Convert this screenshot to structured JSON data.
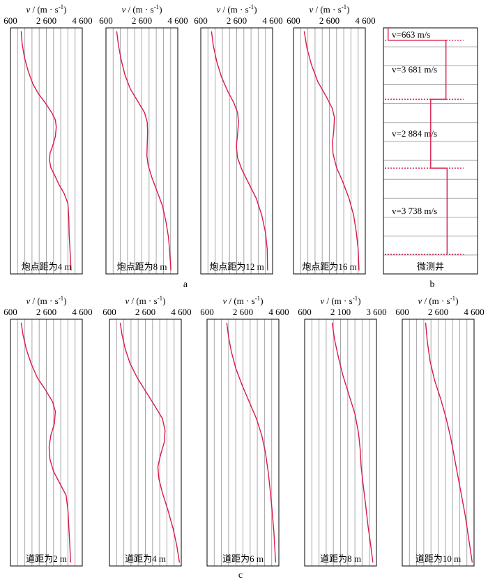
{
  "labels": {
    "a": "a",
    "b": "b",
    "c": "c"
  },
  "colors": {
    "curve": "#d81b4a",
    "grid": "#a6a6a6",
    "frame": "#000000"
  },
  "axis_label": {
    "v": "v",
    "unit": " / (m · s",
    "sup": "-1",
    "close": ")"
  },
  "chart_data": [
    {
      "type": "line",
      "title": "",
      "caption": "炮点距为4 m",
      "xlabel": "v / (m · s-1)",
      "xlim": [
        600,
        4600
      ],
      "ticks": [
        "600",
        "2 600",
        "4 600"
      ],
      "grid": true,
      "series": [
        {
          "values": [
            [
              1200,
              0
            ],
            [
              1250,
              0.05
            ],
            [
              1380,
              0.11
            ],
            [
              1600,
              0.17
            ],
            [
              1850,
              0.22
            ],
            [
              2150,
              0.26
            ],
            [
              2550,
              0.3
            ],
            [
              2900,
              0.34
            ],
            [
              3100,
              0.37
            ],
            [
              3150,
              0.4
            ],
            [
              3100,
              0.44
            ],
            [
              2950,
              0.48
            ],
            [
              2800,
              0.51
            ],
            [
              2780,
              0.54
            ],
            [
              2850,
              0.57
            ],
            [
              3050,
              0.6
            ],
            [
              3300,
              0.64
            ],
            [
              3600,
              0.68
            ],
            [
              3800,
              0.72
            ],
            [
              3850,
              0.78
            ],
            [
              3870,
              0.85
            ],
            [
              3920,
              0.92
            ],
            [
              3980,
              1.0
            ]
          ]
        }
      ]
    },
    {
      "type": "line",
      "title": "",
      "caption": "炮点距为8 m",
      "xlabel": "v / (m · s-1)",
      "xlim": [
        600,
        4600
      ],
      "ticks": [
        "600",
        "2 600",
        "4 600"
      ],
      "grid": true,
      "series": [
        {
          "values": [
            [
              1200,
              0
            ],
            [
              1300,
              0.06
            ],
            [
              1450,
              0.12
            ],
            [
              1650,
              0.18
            ],
            [
              1950,
              0.24
            ],
            [
              2350,
              0.29
            ],
            [
              2750,
              0.34
            ],
            [
              2900,
              0.38
            ],
            [
              2920,
              0.42
            ],
            [
              2900,
              0.47
            ],
            [
              2880,
              0.52
            ],
            [
              2950,
              0.56
            ],
            [
              3150,
              0.61
            ],
            [
              3450,
              0.67
            ],
            [
              3750,
              0.73
            ],
            [
              3950,
              0.8
            ],
            [
              4080,
              0.86
            ],
            [
              4150,
              0.92
            ],
            [
              4220,
              1.0
            ]
          ]
        }
      ]
    },
    {
      "type": "line",
      "title": "",
      "caption": "炮点距为12 m",
      "xlabel": "v / (m · s-1)",
      "xlim": [
        600,
        4600
      ],
      "ticks": [
        "600",
        "2 600",
        "4 600"
      ],
      "grid": true,
      "series": [
        {
          "values": [
            [
              1200,
              0
            ],
            [
              1300,
              0.06
            ],
            [
              1500,
              0.13
            ],
            [
              1750,
              0.19
            ],
            [
              2100,
              0.25
            ],
            [
              2450,
              0.3
            ],
            [
              2650,
              0.34
            ],
            [
              2700,
              0.38
            ],
            [
              2650,
              0.43
            ],
            [
              2580,
              0.48
            ],
            [
              2650,
              0.53
            ],
            [
              2900,
              0.58
            ],
            [
              3300,
              0.64
            ],
            [
              3700,
              0.7
            ],
            [
              4000,
              0.77
            ],
            [
              4200,
              0.84
            ],
            [
              4300,
              0.91
            ],
            [
              4320,
              1.0
            ]
          ]
        }
      ]
    },
    {
      "type": "line",
      "title": "",
      "caption": "炮点距为16 m",
      "xlabel": "v / (m · s-1)",
      "xlim": [
        600,
        4600
      ],
      "ticks": [
        "600",
        "2 600",
        "4 600"
      ],
      "grid": true,
      "series": [
        {
          "values": [
            [
              1200,
              0
            ],
            [
              1350,
              0.07
            ],
            [
              1600,
              0.14
            ],
            [
              1950,
              0.21
            ],
            [
              2400,
              0.27
            ],
            [
              2750,
              0.32
            ],
            [
              2880,
              0.36
            ],
            [
              2850,
              0.41
            ],
            [
              2780,
              0.46
            ],
            [
              2800,
              0.51
            ],
            [
              3000,
              0.57
            ],
            [
              3350,
              0.63
            ],
            [
              3700,
              0.7
            ],
            [
              3950,
              0.77
            ],
            [
              4100,
              0.84
            ],
            [
              4200,
              0.91
            ],
            [
              4250,
              1.0
            ]
          ]
        }
      ]
    },
    {
      "type": "line",
      "title": "",
      "caption": "微测井",
      "layers": [
        {
          "label": "v=663 m/s",
          "v": 663,
          "top": 0.0,
          "bottom": 0.05
        },
        {
          "label": "v=3 681 m/s",
          "v": 3681,
          "top": 0.05,
          "bottom": 0.29
        },
        {
          "label": "v=2 884 m/s",
          "v": 2884,
          "top": 0.29,
          "bottom": 0.57
        },
        {
          "label": "v=3 738 m/s",
          "v": 3738,
          "top": 0.57,
          "bottom": 0.92
        }
      ],
      "grid": true
    },
    {
      "type": "line",
      "title": "",
      "caption": "道距为2 m",
      "xlabel": "v / (m · s-1)",
      "xlim": [
        600,
        4600
      ],
      "ticks": [
        "600",
        "2 600",
        "4 600"
      ],
      "grid": true,
      "series": [
        {
          "values": [
            [
              1200,
              0
            ],
            [
              1300,
              0.05
            ],
            [
              1480,
              0.11
            ],
            [
              1750,
              0.17
            ],
            [
              2100,
              0.23
            ],
            [
              2550,
              0.28
            ],
            [
              2950,
              0.33
            ],
            [
              3100,
              0.37
            ],
            [
              3050,
              0.42
            ],
            [
              2850,
              0.47
            ],
            [
              2750,
              0.52
            ],
            [
              2800,
              0.57
            ],
            [
              3000,
              0.62
            ],
            [
              3350,
              0.67
            ],
            [
              3700,
              0.72
            ],
            [
              3800,
              0.78
            ],
            [
              3850,
              0.85
            ],
            [
              3900,
              0.92
            ],
            [
              3950,
              1.0
            ]
          ]
        }
      ]
    },
    {
      "type": "line",
      "title": "",
      "caption": "道距为4 m",
      "xlabel": "v / (m · s-1)",
      "xlim": [
        600,
        4600
      ],
      "ticks": [
        "600",
        "2 600",
        "4 600"
      ],
      "grid": true,
      "series": [
        {
          "values": [
            [
              1200,
              0
            ],
            [
              1300,
              0.05
            ],
            [
              1480,
              0.11
            ],
            [
              1750,
              0.17
            ],
            [
              2150,
              0.23
            ],
            [
              2650,
              0.29
            ],
            [
              3150,
              0.35
            ],
            [
              3550,
              0.4
            ],
            [
              3700,
              0.45
            ],
            [
              3650,
              0.5
            ],
            [
              3450,
              0.55
            ],
            [
              3300,
              0.6
            ],
            [
              3350,
              0.65
            ],
            [
              3550,
              0.71
            ],
            [
              3850,
              0.78
            ],
            [
              4150,
              0.86
            ],
            [
              4350,
              0.93
            ],
            [
              4500,
              1.0
            ]
          ]
        }
      ]
    },
    {
      "type": "line",
      "title": "",
      "caption": "道距为6 m",
      "xlabel": "v / (m · s-1)",
      "xlim": [
        600,
        4600
      ],
      "ticks": [
        "600",
        "2 600",
        "4 600"
      ],
      "grid": true,
      "series": [
        {
          "values": [
            [
              1700,
              0
            ],
            [
              1800,
              0.06
            ],
            [
              1950,
              0.12
            ],
            [
              2200,
              0.19
            ],
            [
              2550,
              0.26
            ],
            [
              2950,
              0.33
            ],
            [
              3350,
              0.4
            ],
            [
              3650,
              0.47
            ],
            [
              3850,
              0.54
            ],
            [
              4000,
              0.62
            ],
            [
              4120,
              0.7
            ],
            [
              4220,
              0.78
            ],
            [
              4320,
              0.87
            ],
            [
              4420,
              1.0
            ]
          ]
        }
      ]
    },
    {
      "type": "line",
      "title": "",
      "caption": "道距为8 m",
      "xlabel": "v / (m · s-1)",
      "xlim": [
        600,
        3600
      ],
      "ticks": [
        "600",
        "2 100",
        "3 600"
      ],
      "grid": true,
      "series": [
        {
          "values": [
            [
              1750,
              0
            ],
            [
              1850,
              0.07
            ],
            [
              2000,
              0.14
            ],
            [
              2200,
              0.22
            ],
            [
              2450,
              0.3
            ],
            [
              2700,
              0.38
            ],
            [
              2850,
              0.46
            ],
            [
              2920,
              0.53
            ],
            [
              2960,
              0.6
            ],
            [
              3050,
              0.68
            ],
            [
              3150,
              0.76
            ],
            [
              3250,
              0.85
            ],
            [
              3350,
              0.92
            ],
            [
              3450,
              1.0
            ]
          ]
        }
      ]
    },
    {
      "type": "line",
      "title": "",
      "caption": "道距为10 m",
      "xlabel": "v / (m · s-1)",
      "xlim": [
        600,
        4600
      ],
      "ticks": [
        "600",
        "2 600",
        "4 600"
      ],
      "grid": true,
      "series": [
        {
          "values": [
            [
              1900,
              0
            ],
            [
              2000,
              0.08
            ],
            [
              2150,
              0.16
            ],
            [
              2400,
              0.24
            ],
            [
              2750,
              0.32
            ],
            [
              3050,
              0.4
            ],
            [
              3300,
              0.48
            ],
            [
              3500,
              0.56
            ],
            [
              3700,
              0.64
            ],
            [
              3900,
              0.72
            ],
            [
              4100,
              0.8
            ],
            [
              4300,
              0.9
            ],
            [
              4500,
              1.0
            ]
          ]
        }
      ]
    }
  ]
}
